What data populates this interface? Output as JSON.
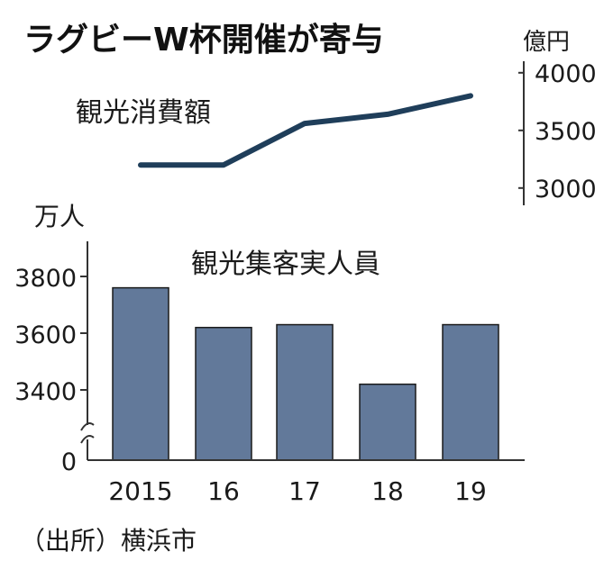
{
  "chart_data": [
    {
      "type": "line",
      "title": "ラグビーW杯開催が寄与",
      "series_label": "観光消費額",
      "unit": "億円",
      "yticks": [
        3000,
        3500,
        4000
      ],
      "ylim": [
        2850,
        4100
      ],
      "x": [
        "2015",
        "16",
        "17",
        "18",
        "19"
      ],
      "values": [
        3200,
        3200,
        3560,
        3640,
        3800
      ],
      "color": "#1f3e5a",
      "axis_side": "right"
    },
    {
      "type": "bar",
      "series_label": "観光集客実人員",
      "unit": "万人",
      "categories": [
        "2015",
        "16",
        "17",
        "18",
        "19"
      ],
      "values": [
        3760,
        3620,
        3630,
        3420,
        3630
      ],
      "yticks": [
        3400,
        3600,
        3800
      ],
      "ylim": [
        3200,
        3900
      ],
      "zero_label": "0",
      "axis_break": true,
      "color": "#62799a",
      "grid": false,
      "axis_side": "left"
    }
  ],
  "source": "（出所）横浜市"
}
